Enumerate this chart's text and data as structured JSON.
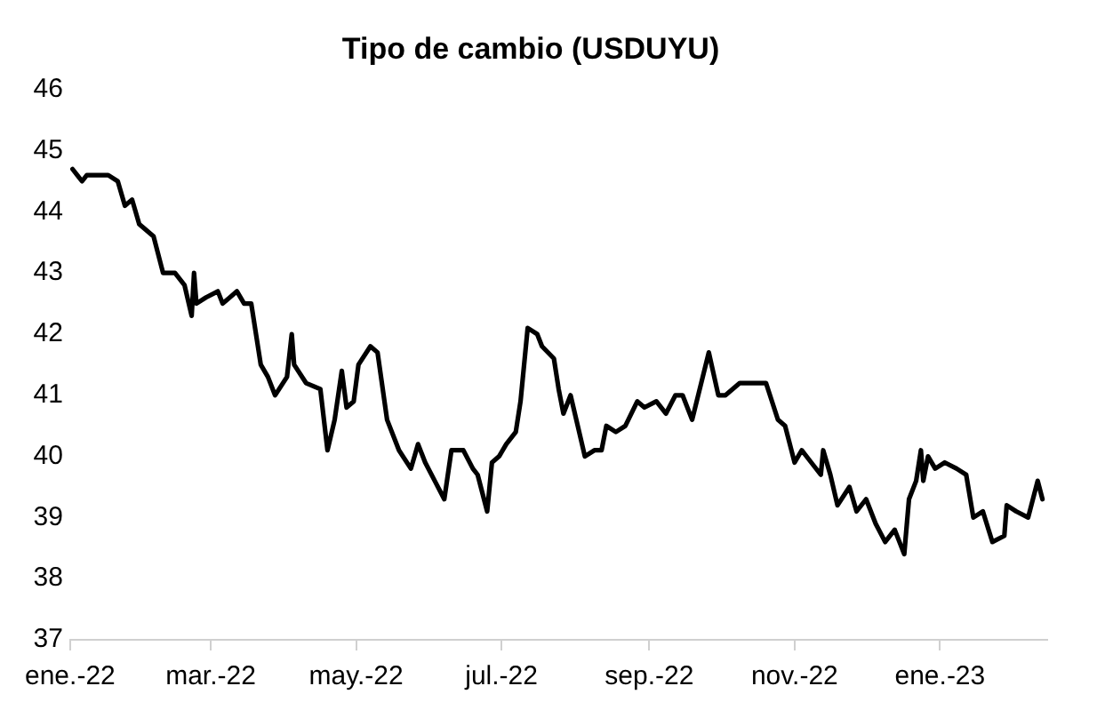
{
  "chart_data": {
    "type": "line",
    "title": "Tipo de cambio (USDUYU)",
    "x": [
      "2022-01-02",
      "2022-01-04",
      "2022-01-06",
      "2022-01-08",
      "2022-01-12",
      "2022-01-17",
      "2022-01-21",
      "2022-01-24",
      "2022-01-27",
      "2022-01-30",
      "2022-02-05",
      "2022-02-09",
      "2022-02-14",
      "2022-02-18",
      "2022-02-21",
      "2022-02-22",
      "2022-02-23",
      "2022-02-27",
      "2022-03-04",
      "2022-03-06",
      "2022-03-12",
      "2022-03-15",
      "2022-03-18",
      "2022-03-22",
      "2022-03-25",
      "2022-03-28",
      "2022-04-02",
      "2022-04-04",
      "2022-04-05",
      "2022-04-10",
      "2022-04-16",
      "2022-04-19",
      "2022-04-22",
      "2022-04-25",
      "2022-04-27",
      "2022-04-30",
      "2022-05-02",
      "2022-05-07",
      "2022-05-10",
      "2022-05-14",
      "2022-05-19",
      "2022-05-24",
      "2022-05-27",
      "2022-05-30",
      "2022-06-03",
      "2022-06-07",
      "2022-06-10",
      "2022-06-15",
      "2022-06-19",
      "2022-06-21",
      "2022-06-25",
      "2022-06-27",
      "2022-06-30",
      "2022-07-03",
      "2022-07-07",
      "2022-07-09",
      "2022-07-12",
      "2022-07-16",
      "2022-07-18",
      "2022-07-23",
      "2022-07-25",
      "2022-07-27",
      "2022-07-30",
      "2022-08-02",
      "2022-08-05",
      "2022-08-09",
      "2022-08-12",
      "2022-08-14",
      "2022-08-18",
      "2022-08-22",
      "2022-08-27",
      "2022-08-30",
      "2022-09-04",
      "2022-09-08",
      "2022-09-12",
      "2022-09-15",
      "2022-09-19",
      "2022-09-26",
      "2022-09-30",
      "2022-10-03",
      "2022-10-09",
      "2022-10-14",
      "2022-10-20",
      "2022-10-25",
      "2022-10-28",
      "2022-11-01",
      "2022-11-04",
      "2022-11-08",
      "2022-11-12",
      "2022-11-13",
      "2022-11-16",
      "2022-11-19",
      "2022-11-24",
      "2022-11-27",
      "2022-12-01",
      "2022-12-05",
      "2022-12-09",
      "2022-12-13",
      "2022-12-17",
      "2022-12-19",
      "2022-12-22",
      "2022-12-24",
      "2022-12-25",
      "2022-12-27",
      "2022-12-30",
      "2023-01-03",
      "2023-01-08",
      "2023-01-12",
      "2023-01-15",
      "2023-01-19",
      "2023-01-23",
      "2023-01-28",
      "2023-01-29",
      "2023-02-02",
      "2023-02-07",
      "2023-02-11",
      "2023-02-13"
    ],
    "series": [
      {
        "color": "#000000",
        "values": [
          44.7,
          44.6,
          44.5,
          44.6,
          44.6,
          44.6,
          44.5,
          44.1,
          44.2,
          43.8,
          43.6,
          43.0,
          43.0,
          42.8,
          42.3,
          43.0,
          42.5,
          42.6,
          42.7,
          42.5,
          42.7,
          42.5,
          42.5,
          41.5,
          41.3,
          41.0,
          41.3,
          42.0,
          41.5,
          41.2,
          41.1,
          40.1,
          40.6,
          41.4,
          40.8,
          40.9,
          41.5,
          41.8,
          41.7,
          40.6,
          40.1,
          39.8,
          40.2,
          39.9,
          39.6,
          39.3,
          40.1,
          40.1,
          39.8,
          39.7,
          39.1,
          39.9,
          40.0,
          40.2,
          40.4,
          40.9,
          42.1,
          42.0,
          41.8,
          41.6,
          41.1,
          40.7,
          41.0,
          40.5,
          40.0,
          40.1,
          40.1,
          40.5,
          40.4,
          40.5,
          40.9,
          40.8,
          40.9,
          40.7,
          41.0,
          41.0,
          40.6,
          41.7,
          41.0,
          41.0,
          41.2,
          41.2,
          41.2,
          40.6,
          40.5,
          39.9,
          40.1,
          39.9,
          39.7,
          40.1,
          39.7,
          39.2,
          39.5,
          39.1,
          39.3,
          38.9,
          38.6,
          38.8,
          38.4,
          39.3,
          39.6,
          40.1,
          39.6,
          40.0,
          39.8,
          39.9,
          39.8,
          39.7,
          39.0,
          39.1,
          38.6,
          38.7,
          39.2,
          39.1,
          39.0,
          39.6,
          39.3
        ]
      }
    ],
    "xlim": [
      "2022-01-01",
      "2023-02-15"
    ],
    "xticks": [
      {
        "value": "2022-01-01",
        "label": "ene.-22"
      },
      {
        "value": "2022-03-01",
        "label": "mar.-22"
      },
      {
        "value": "2022-05-01",
        "label": "may.-22"
      },
      {
        "value": "2022-07-01",
        "label": "jul.-22"
      },
      {
        "value": "2022-09-01",
        "label": "sep.-22"
      },
      {
        "value": "2022-11-01",
        "label": "nov.-22"
      },
      {
        "value": "2023-01-01",
        "label": "ene.-23"
      }
    ],
    "ylim": [
      37,
      46
    ],
    "yticks": [
      37,
      38,
      39,
      40,
      41,
      42,
      43,
      44,
      45,
      46
    ],
    "marker": "none",
    "line_style": "solid",
    "legend": false
  }
}
